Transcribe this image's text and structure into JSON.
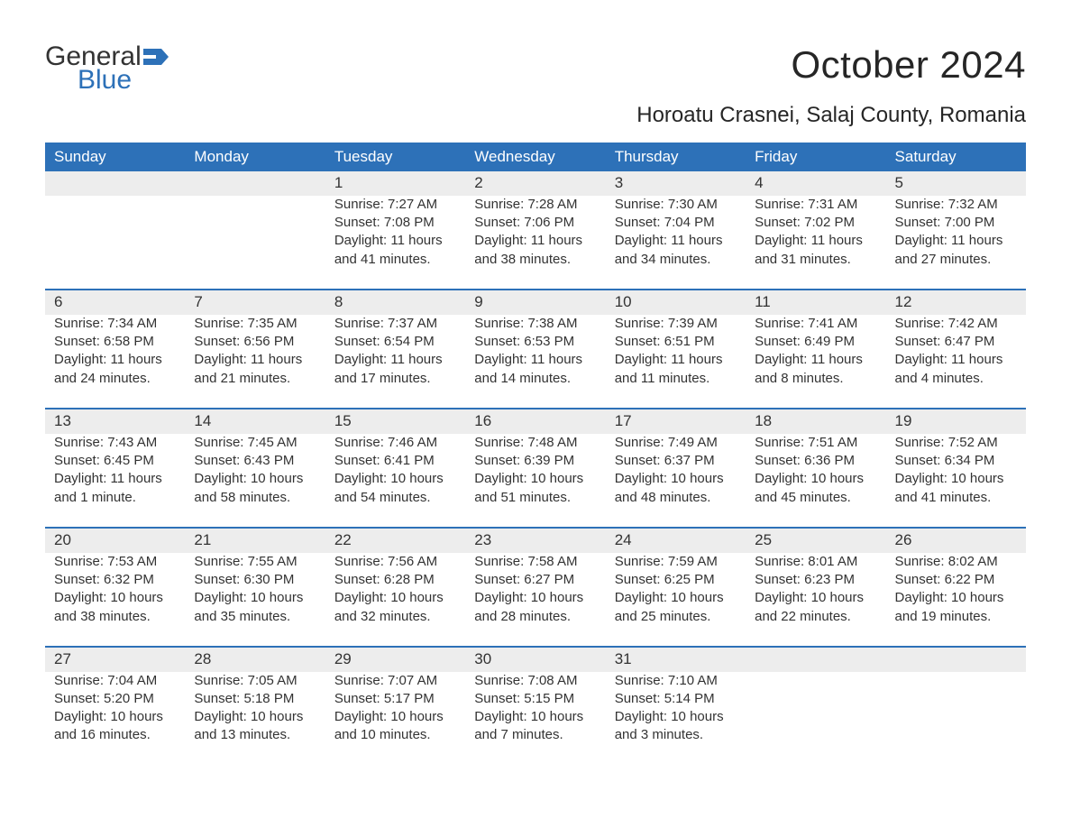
{
  "logo": {
    "top": "General",
    "bottom": "Blue",
    "flag_color": "#2d71b8"
  },
  "title": "October 2024",
  "location": "Horoatu Crasnei, Salaj County, Romania",
  "colors": {
    "header_bg": "#2d71b8",
    "header_text": "#ffffff",
    "daynum_bg": "#ededed",
    "border": "#2d71b8",
    "body_text": "#333333",
    "page_bg": "#ffffff"
  },
  "typography": {
    "title_fontsize": 42,
    "location_fontsize": 24,
    "header_fontsize": 17,
    "daynum_fontsize": 17,
    "cell_fontsize": 15,
    "logo_fontsize": 30
  },
  "weekdays": [
    "Sunday",
    "Monday",
    "Tuesday",
    "Wednesday",
    "Thursday",
    "Friday",
    "Saturday"
  ],
  "weeks": [
    [
      null,
      null,
      {
        "n": "1",
        "sr": "7:27 AM",
        "ss": "7:08 PM",
        "dl": "11 hours and 41 minutes."
      },
      {
        "n": "2",
        "sr": "7:28 AM",
        "ss": "7:06 PM",
        "dl": "11 hours and 38 minutes."
      },
      {
        "n": "3",
        "sr": "7:30 AM",
        "ss": "7:04 PM",
        "dl": "11 hours and 34 minutes."
      },
      {
        "n": "4",
        "sr": "7:31 AM",
        "ss": "7:02 PM",
        "dl": "11 hours and 31 minutes."
      },
      {
        "n": "5",
        "sr": "7:32 AM",
        "ss": "7:00 PM",
        "dl": "11 hours and 27 minutes."
      }
    ],
    [
      {
        "n": "6",
        "sr": "7:34 AM",
        "ss": "6:58 PM",
        "dl": "11 hours and 24 minutes."
      },
      {
        "n": "7",
        "sr": "7:35 AM",
        "ss": "6:56 PM",
        "dl": "11 hours and 21 minutes."
      },
      {
        "n": "8",
        "sr": "7:37 AM",
        "ss": "6:54 PM",
        "dl": "11 hours and 17 minutes."
      },
      {
        "n": "9",
        "sr": "7:38 AM",
        "ss": "6:53 PM",
        "dl": "11 hours and 14 minutes."
      },
      {
        "n": "10",
        "sr": "7:39 AM",
        "ss": "6:51 PM",
        "dl": "11 hours and 11 minutes."
      },
      {
        "n": "11",
        "sr": "7:41 AM",
        "ss": "6:49 PM",
        "dl": "11 hours and 8 minutes."
      },
      {
        "n": "12",
        "sr": "7:42 AM",
        "ss": "6:47 PM",
        "dl": "11 hours and 4 minutes."
      }
    ],
    [
      {
        "n": "13",
        "sr": "7:43 AM",
        "ss": "6:45 PM",
        "dl": "11 hours and 1 minute."
      },
      {
        "n": "14",
        "sr": "7:45 AM",
        "ss": "6:43 PM",
        "dl": "10 hours and 58 minutes."
      },
      {
        "n": "15",
        "sr": "7:46 AM",
        "ss": "6:41 PM",
        "dl": "10 hours and 54 minutes."
      },
      {
        "n": "16",
        "sr": "7:48 AM",
        "ss": "6:39 PM",
        "dl": "10 hours and 51 minutes."
      },
      {
        "n": "17",
        "sr": "7:49 AM",
        "ss": "6:37 PM",
        "dl": "10 hours and 48 minutes."
      },
      {
        "n": "18",
        "sr": "7:51 AM",
        "ss": "6:36 PM",
        "dl": "10 hours and 45 minutes."
      },
      {
        "n": "19",
        "sr": "7:52 AM",
        "ss": "6:34 PM",
        "dl": "10 hours and 41 minutes."
      }
    ],
    [
      {
        "n": "20",
        "sr": "7:53 AM",
        "ss": "6:32 PM",
        "dl": "10 hours and 38 minutes."
      },
      {
        "n": "21",
        "sr": "7:55 AM",
        "ss": "6:30 PM",
        "dl": "10 hours and 35 minutes."
      },
      {
        "n": "22",
        "sr": "7:56 AM",
        "ss": "6:28 PM",
        "dl": "10 hours and 32 minutes."
      },
      {
        "n": "23",
        "sr": "7:58 AM",
        "ss": "6:27 PM",
        "dl": "10 hours and 28 minutes."
      },
      {
        "n": "24",
        "sr": "7:59 AM",
        "ss": "6:25 PM",
        "dl": "10 hours and 25 minutes."
      },
      {
        "n": "25",
        "sr": "8:01 AM",
        "ss": "6:23 PM",
        "dl": "10 hours and 22 minutes."
      },
      {
        "n": "26",
        "sr": "8:02 AM",
        "ss": "6:22 PM",
        "dl": "10 hours and 19 minutes."
      }
    ],
    [
      {
        "n": "27",
        "sr": "7:04 AM",
        "ss": "5:20 PM",
        "dl": "10 hours and 16 minutes."
      },
      {
        "n": "28",
        "sr": "7:05 AM",
        "ss": "5:18 PM",
        "dl": "10 hours and 13 minutes."
      },
      {
        "n": "29",
        "sr": "7:07 AM",
        "ss": "5:17 PM",
        "dl": "10 hours and 10 minutes."
      },
      {
        "n": "30",
        "sr": "7:08 AM",
        "ss": "5:15 PM",
        "dl": "10 hours and 7 minutes."
      },
      {
        "n": "31",
        "sr": "7:10 AM",
        "ss": "5:14 PM",
        "dl": "10 hours and 3 minutes."
      },
      null,
      null
    ]
  ],
  "labels": {
    "sunrise": "Sunrise: ",
    "sunset": "Sunset: ",
    "daylight": "Daylight: "
  }
}
